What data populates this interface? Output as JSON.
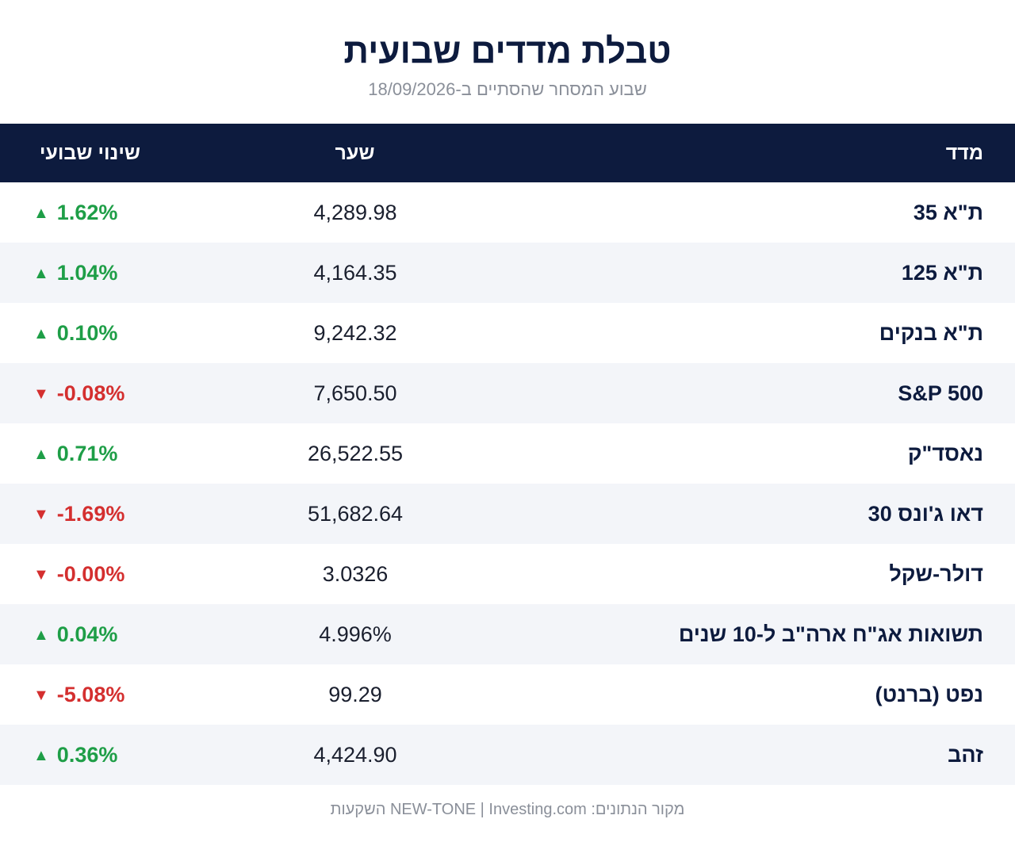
{
  "header": {
    "title": "טבלת מדדים שבועית",
    "subtitle": "שבוע המסחר שהסתיים ב-18/09/2026"
  },
  "table": {
    "columns": {
      "name": "מדד",
      "rate": "שער",
      "change": "שינוי שבועי"
    },
    "rows": [
      {
        "name": "ת\"א 35",
        "rate": "4,289.98",
        "change": "1.62%",
        "direction": "up",
        "arrow": "▲"
      },
      {
        "name": "ת\"א 125",
        "rate": "4,164.35",
        "change": "1.04%",
        "direction": "up",
        "arrow": "▲"
      },
      {
        "name": "ת\"א בנקים",
        "rate": "9,242.32",
        "change": "0.10%",
        "direction": "up",
        "arrow": "▲"
      },
      {
        "name": "S&P 500",
        "rate": "7,650.50",
        "change": "-0.08%",
        "direction": "down",
        "arrow": "▼"
      },
      {
        "name": "נאסד\"ק",
        "rate": "26,522.55",
        "change": "0.71%",
        "direction": "up",
        "arrow": "▲"
      },
      {
        "name": "דאו ג'ונס 30",
        "rate": "51,682.64",
        "change": "-1.69%",
        "direction": "down",
        "arrow": "▼"
      },
      {
        "name": "דולר-שקל",
        "rate": "3.0326",
        "change": "-0.00%",
        "direction": "down",
        "arrow": "▼"
      },
      {
        "name": "תשואות אג\"ח ארה\"ב ל-10 שנים",
        "rate": "4.996%",
        "change": "0.04%",
        "direction": "up",
        "arrow": "▲"
      },
      {
        "name": "נפט (ברנט)",
        "rate": "99.29",
        "change": "-5.08%",
        "direction": "down",
        "arrow": "▼"
      },
      {
        "name": "זהב",
        "rate": "4,424.90",
        "change": "0.36%",
        "direction": "up",
        "arrow": "▲"
      }
    ]
  },
  "footer": {
    "source": "מקור הנתונים: NEW-TONE | Investing.com השקעות"
  },
  "colors": {
    "header_bg": "#0d1b3e",
    "up": "#1e9e47",
    "down": "#d42f2f",
    "row_alt": "#f3f5f9"
  }
}
